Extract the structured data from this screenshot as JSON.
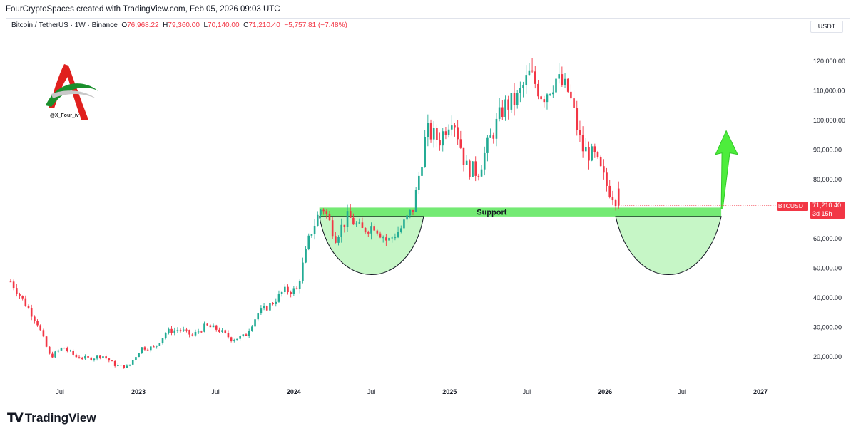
{
  "header": {
    "text": "FourCryptoSpaces created with TradingView.com, Feb 05, 2026 09:03 UTC"
  },
  "legend": {
    "symbol": "Bitcoin / TetherUS · 1W · Binance",
    "open_label": "O",
    "open": "76,968.22",
    "high_label": "H",
    "high": "79,360.00",
    "low_label": "L",
    "low": "70,140.00",
    "close_label": "C",
    "close": "71,210.40",
    "change": "−5,757.81 (−7.48%)"
  },
  "unit": "USDT",
  "watermark": {
    "handle": "@X_Four_iv"
  },
  "price_tag": {
    "symbol": "BTCUSDT",
    "price": "71,210.40",
    "countdown": "3d 15h"
  },
  "footer": {
    "brand": "TradingView",
    "logo": "tradingview-logo"
  },
  "colors": {
    "up": "#089981",
    "up_body": "#22ab94",
    "down": "#f23645",
    "support": "#5ce65c",
    "arrow": "#4ded3c"
  },
  "chart_data": {
    "type": "candlestick",
    "timeframe": "1W",
    "ylim": [
      13000,
      127000
    ],
    "yticks": [
      20000,
      30000,
      40000,
      50000,
      60000,
      70000,
      80000,
      90000,
      100000,
      110000,
      120000
    ],
    "ytick_labels": [
      "20,000.00",
      "30,000.00",
      "40,000.00",
      "50,000.00",
      "60,000.00",
      "70,000.00",
      "80,000.00",
      "90,000.00",
      "100,000.00",
      "110,000.00",
      "120,000.00"
    ],
    "xticks": [
      "Jul",
      "2023",
      "Jul",
      "2024",
      "Jul",
      "2025",
      "Jul",
      "2026",
      "Jul",
      "2027"
    ],
    "annotations": {
      "support_label": "Support",
      "support_zone": [
        67500,
        70500
      ]
    },
    "monthly_closes": [
      [
        "2022-03",
        45500
      ],
      [
        "2022-04",
        38500
      ],
      [
        "2022-05",
        31800
      ],
      [
        "2022-06",
        19900
      ],
      [
        "2022-07",
        23300
      ],
      [
        "2022-08",
        20000
      ],
      [
        "2022-09",
        19400
      ],
      [
        "2022-10",
        20500
      ],
      [
        "2022-11",
        17200
      ],
      [
        "2022-12",
        16550
      ],
      [
        "2023-01",
        23100
      ],
      [
        "2023-02",
        23150
      ],
      [
        "2023-03",
        28500
      ],
      [
        "2023-04",
        29300
      ],
      [
        "2023-05",
        27200
      ],
      [
        "2023-06",
        30500
      ],
      [
        "2023-07",
        29200
      ],
      [
        "2023-08",
        26000
      ],
      [
        "2023-09",
        27000
      ],
      [
        "2023-10",
        34600
      ],
      [
        "2023-11",
        37700
      ],
      [
        "2023-12",
        42300
      ],
      [
        "2024-01",
        42600
      ],
      [
        "2024-02",
        61200
      ],
      [
        "2024-03",
        71300
      ],
      [
        "2024-04",
        60700
      ],
      [
        "2024-05",
        67500
      ],
      [
        "2024-06",
        62700
      ],
      [
        "2024-07",
        64600
      ],
      [
        "2024-08",
        59000
      ],
      [
        "2024-09",
        63300
      ],
      [
        "2024-10",
        70300
      ],
      [
        "2024-11",
        96400
      ],
      [
        "2024-12",
        93400
      ],
      [
        "2025-01",
        102400
      ],
      [
        "2025-02",
        84300
      ],
      [
        "2025-03",
        82500
      ],
      [
        "2025-04",
        94200
      ],
      [
        "2025-05",
        104600
      ],
      [
        "2025-06",
        107100
      ],
      [
        "2025-07",
        115700
      ],
      [
        "2025-08",
        108200
      ],
      [
        "2025-09",
        114000
      ],
      [
        "2025-10",
        109500
      ],
      [
        "2025-11",
        90400
      ],
      [
        "2025-12",
        87600
      ],
      [
        "2026-01",
        76968
      ],
      [
        "2026-02",
        71210
      ]
    ],
    "last_candle": {
      "date": "2026-02-02",
      "open": 76968.22,
      "high": 79360.0,
      "low": 70140.0,
      "close": 71210.4
    }
  }
}
